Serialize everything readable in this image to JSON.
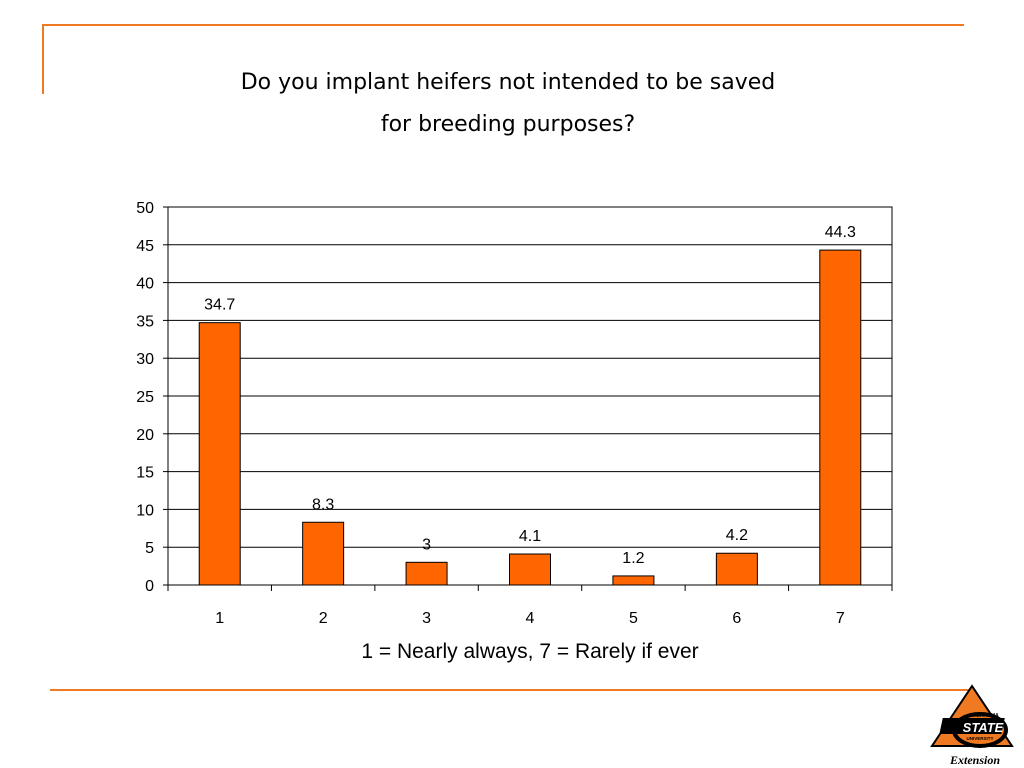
{
  "title_lines": [
    "Do you implant heifers not intended to be saved",
    "for breeding purposes?"
  ],
  "colors": {
    "accent": "#f07a22",
    "bar_fill": "#ff6600",
    "bar_stroke": "#000000"
  },
  "logo": {
    "text_top": "OKLAHOMA",
    "text_main": "STATE",
    "text_sub": "UNIVERSITY",
    "caption": "Extension"
  },
  "chart_data": {
    "type": "bar",
    "title": "Do you implant heifers not intended to be saved for breeding purposes?",
    "xlabel": "1 = Nearly always, 7 = Rarely if ever",
    "ylabel": "",
    "categories": [
      "1",
      "2",
      "3",
      "4",
      "5",
      "6",
      "7"
    ],
    "values": [
      34.7,
      8.3,
      3,
      4.1,
      1.2,
      4.2,
      44.3
    ],
    "data_labels": [
      "34.7",
      "8.3",
      "3",
      "4.1",
      "1.2",
      "4.2",
      "44.3"
    ],
    "ylim": [
      0,
      50
    ],
    "yticks": [
      0,
      5,
      10,
      15,
      20,
      25,
      30,
      35,
      40,
      45,
      50
    ],
    "grid": true,
    "legend": "none"
  }
}
